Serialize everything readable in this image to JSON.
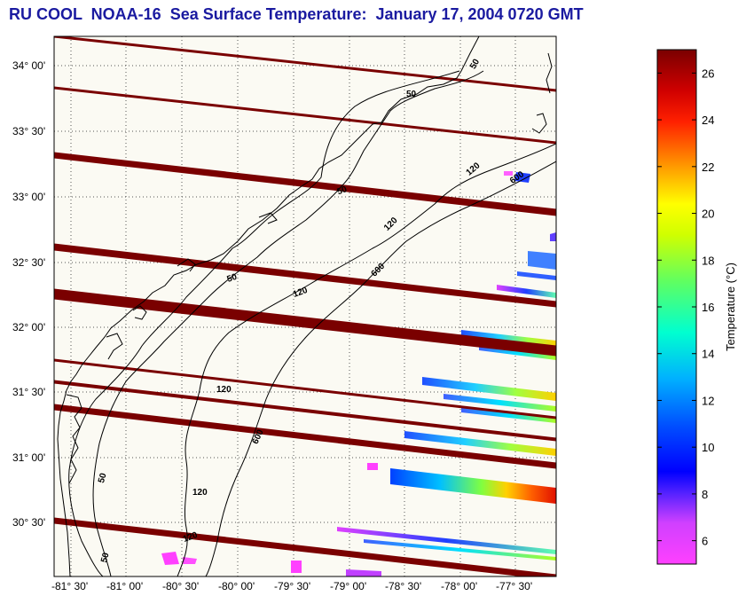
{
  "title": "RU COOL  NOAA-16  Sea Surface Temperature:  January 17, 2004 0720 GMT",
  "map": {
    "lon_range": [
      -81.6,
      -77.2
    ],
    "lat_range": [
      30.05,
      34.2
    ],
    "lat_ticks": [
      {
        "value": 34.0,
        "label": "34° 00'"
      },
      {
        "value": 33.5,
        "label": "33° 30'"
      },
      {
        "value": 33.0,
        "label": "33° 00'"
      },
      {
        "value": 32.5,
        "label": "32° 30'"
      },
      {
        "value": 32.0,
        "label": "32° 00'"
      },
      {
        "value": 31.5,
        "label": "31° 30'"
      },
      {
        "value": 31.0,
        "label": "31° 00'"
      },
      {
        "value": 30.5,
        "label": "30° 30'"
      }
    ],
    "lon_ticks": [
      {
        "value": -81.5,
        "label": "-81° 30'"
      },
      {
        "value": -81.0,
        "label": "-81° 00'"
      },
      {
        "value": -80.5,
        "label": "-80° 30'"
      },
      {
        "value": -80.0,
        "label": "-80° 00'"
      },
      {
        "value": -79.5,
        "label": "-79° 30'"
      },
      {
        "value": -79.0,
        "label": "-79° 00'"
      },
      {
        "value": -78.5,
        "label": "-78° 30'"
      },
      {
        "value": -78.0,
        "label": "-78° 00'"
      },
      {
        "value": -77.5,
        "label": "-77° 30'"
      }
    ],
    "grid": "dotted",
    "background_color": "#fbfaf3",
    "scan_line_color": "#7a0000",
    "contour_labels": [
      "50",
      "50",
      "120",
      "600",
      "50",
      "120",
      "600",
      "50",
      "120",
      "120",
      "50",
      "120",
      "600",
      "50",
      "120",
      "50"
    ]
  },
  "colorbar": {
    "label": "Temperature (°C)",
    "range": [
      5,
      27
    ],
    "ticks": [
      "6",
      "8",
      "10",
      "12",
      "14",
      "16",
      "18",
      "20",
      "22",
      "24",
      "26"
    ],
    "tick_values": [
      6,
      8,
      10,
      12,
      14,
      16,
      18,
      20,
      22,
      24,
      26
    ]
  }
}
